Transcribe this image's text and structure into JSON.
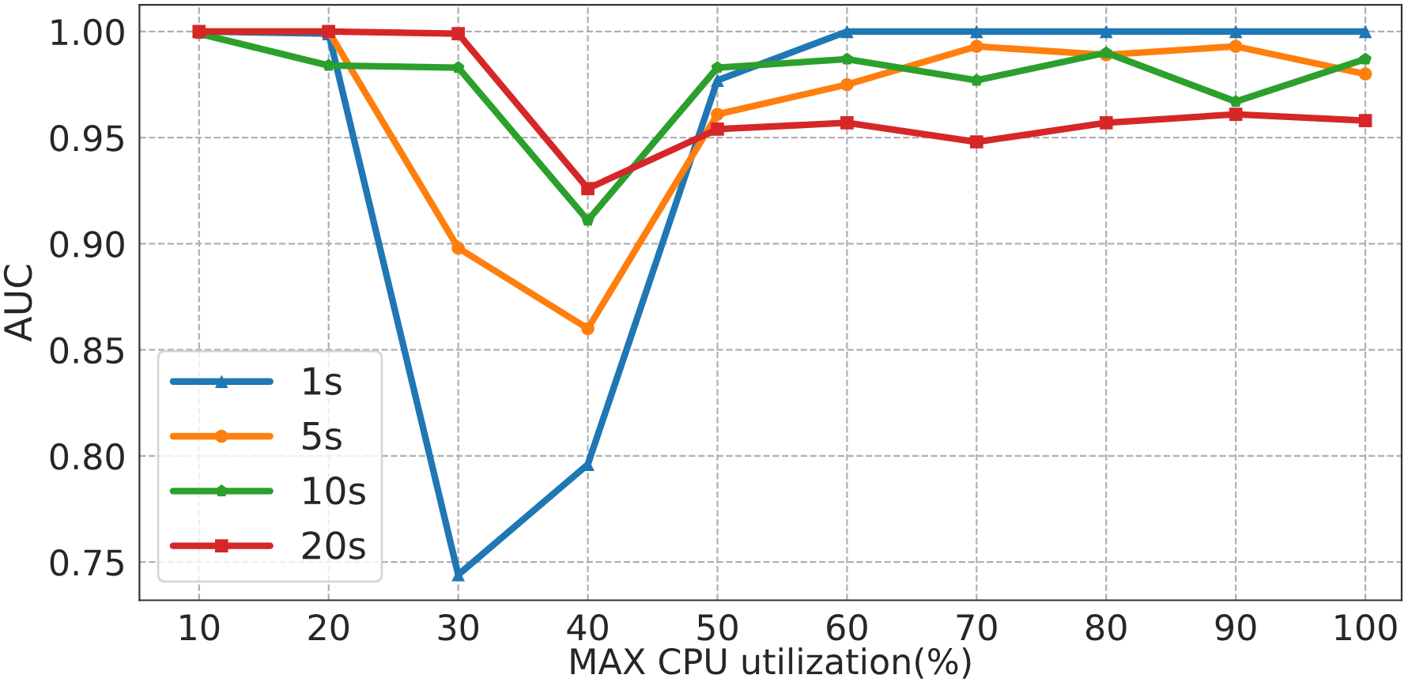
{
  "chart_data": {
    "type": "line",
    "xlabel": "MAX CPU utilization(%)",
    "ylabel": "AUC",
    "x": [
      10,
      20,
      30,
      40,
      50,
      60,
      70,
      80,
      90,
      100
    ],
    "series": [
      {
        "name": "1s",
        "color": "#1f77b4",
        "marker": "triangle",
        "values": [
          1.0,
          0.999,
          0.744,
          0.796,
          0.977,
          1.0,
          1.0,
          1.0,
          1.0,
          1.0
        ]
      },
      {
        "name": "5s",
        "color": "#ff7f0e",
        "marker": "circle",
        "values": [
          1.0,
          1.0,
          0.898,
          0.86,
          0.961,
          0.975,
          0.993,
          0.989,
          0.993,
          0.98
        ]
      },
      {
        "name": "10s",
        "color": "#2ca02c",
        "marker": "diamond",
        "values": [
          0.999,
          0.984,
          0.983,
          0.911,
          0.983,
          0.987,
          0.977,
          0.99,
          0.967,
          0.987
        ]
      },
      {
        "name": "20s",
        "color": "#d62728",
        "marker": "square",
        "values": [
          1.0,
          1.0,
          0.999,
          0.926,
          0.954,
          0.957,
          0.948,
          0.957,
          0.961,
          0.958
        ]
      }
    ],
    "xlim": [
      5.4,
      102.8
    ],
    "ylim": [
      0.732,
      1.0126
    ],
    "xticks": [
      10,
      20,
      30,
      40,
      50,
      60,
      70,
      80,
      90,
      100
    ],
    "yticks": [
      {
        "value": 0.75,
        "label": "0.75"
      },
      {
        "value": 0.8,
        "label": "0.80"
      },
      {
        "value": 0.85,
        "label": "0.85"
      },
      {
        "value": 0.9,
        "label": "0.90"
      },
      {
        "value": 0.95,
        "label": "0.95"
      },
      {
        "value": 1.0,
        "label": "1.00"
      }
    ],
    "grid": true,
    "legend": "bottom left",
    "line_style": "solid"
  }
}
